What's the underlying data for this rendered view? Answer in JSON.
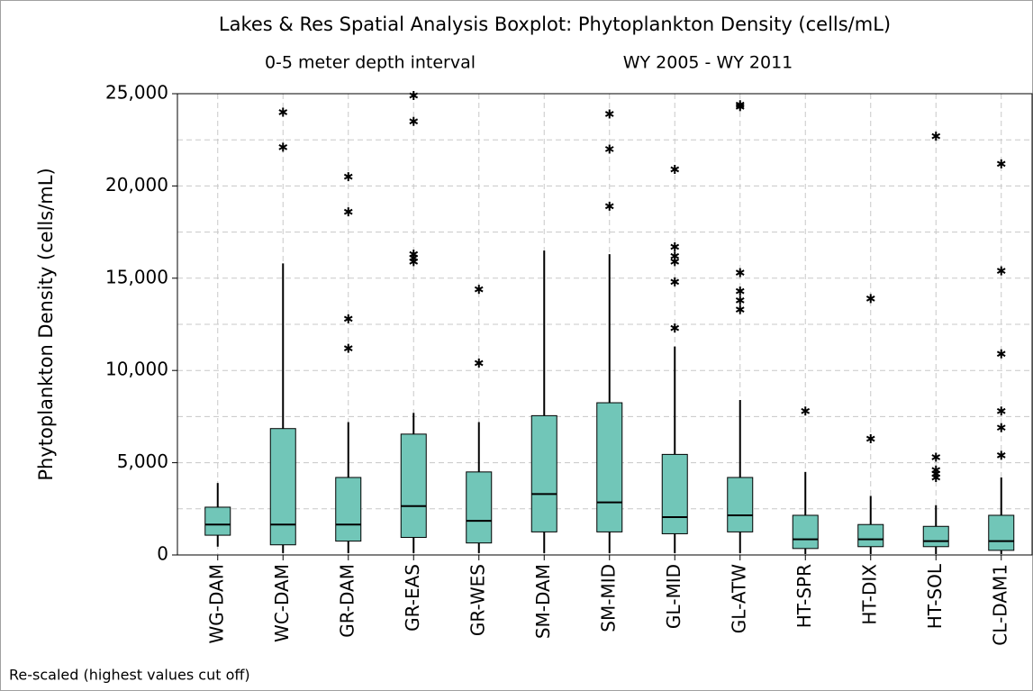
{
  "chart_data": {
    "type": "boxplot",
    "title": "Lakes & Res Spatial Analysis Boxplot: Phytoplankton Density (cells/mL)",
    "subtitle": [
      "0-5 meter depth interval",
      "WY 2005 - WY 2011"
    ],
    "y_label": "Phytoplankton Density (cells/mL)",
    "footnote": "Re-scaled (highest values cut off)",
    "categories": [
      "WG-DAM",
      "WC-DAM",
      "GR-DAM",
      "GR-EAS",
      "GR-WES",
      "SM-DAM",
      "SM-MID",
      "GL-MID",
      "GL-ATW",
      "HT-SPR",
      "HT-DIX",
      "HT-SOL",
      "CL-DAM1"
    ],
    "whisker_low": [
      450,
      100,
      100,
      100,
      100,
      100,
      100,
      100,
      100,
      50,
      50,
      50,
      50
    ],
    "q1": [
      1070,
      550,
      750,
      950,
      650,
      1250,
      1250,
      1150,
      1250,
      350,
      450,
      450,
      250
    ],
    "median": [
      1650,
      1650,
      1650,
      2650,
      1850,
      3300,
      2850,
      2050,
      2150,
      850,
      850,
      750,
      750
    ],
    "q3": [
      2590,
      6850,
      4200,
      6550,
      4500,
      7550,
      8250,
      5450,
      4200,
      2150,
      1650,
      1550,
      2150
    ],
    "whisker_high": [
      3900,
      15800,
      7200,
      7700,
      7200,
      16500,
      16300,
      11300,
      8400,
      4500,
      3200,
      2700,
      4200
    ],
    "outliers": [
      [],
      [
        24000,
        22100
      ],
      [
        20500,
        18600,
        12800,
        11200
      ],
      [
        24900,
        23500,
        16300,
        16100,
        15900
      ],
      [
        14400,
        10400
      ],
      [],
      [
        23900,
        22000,
        18900
      ],
      [
        20900,
        16700,
        16200,
        15900,
        14800,
        12300
      ],
      [
        24400,
        24300,
        15300,
        14300,
        13800,
        13300
      ],
      [
        7800
      ],
      [
        13900,
        6300
      ],
      [
        22700,
        5300,
        4600,
        4400,
        4200
      ],
      [
        21200,
        15400,
        10900,
        7800,
        6900,
        5400
      ]
    ],
    "color": "#71c6b8",
    "ylim": [
      0,
      25000
    ],
    "yticks": [
      0,
      {
        "value": 5000,
        "label": "5,000"
      },
      {
        "value": 10000,
        "label": "10,000"
      },
      {
        "value": 15000,
        "label": "15,000"
      },
      {
        "value": 20000,
        "label": "20,000"
      },
      {
        "value": 25000,
        "label": "25,000"
      }
    ],
    "minor_yticks": [
      2500,
      7500,
      12500,
      17500,
      22500
    ],
    "grid": true
  }
}
